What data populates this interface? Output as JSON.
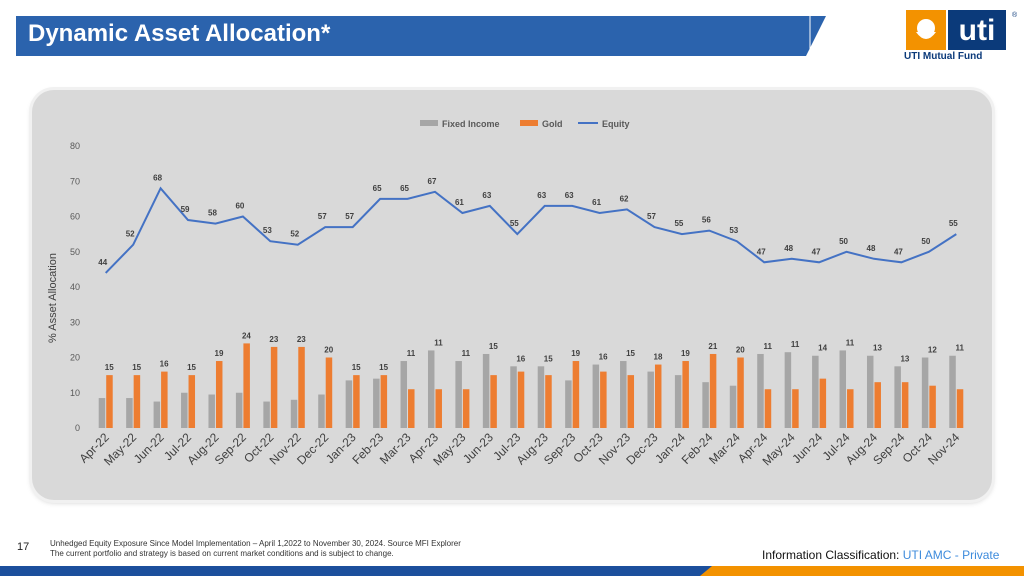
{
  "slide": {
    "title": "Dynamic Asset Allocation*",
    "page_number": "17",
    "footnote_line1": "Unhedged Equity Exposure Since Model Implementation – April 1,2022 to November 30, 2024. Source MFI Explorer",
    "footnote_line2": "The current portfolio and strategy is based on current market conditions and is subject to change.",
    "classification_label": "Information Classification:",
    "classification_value": "UTI AMC - Private",
    "logo_text": "uti",
    "logo_caption": "UTI Mutual Fund",
    "logo_mark": "®"
  },
  "colors": {
    "title_bar": "#2b63ad",
    "fixed_income": "#a6a6a6",
    "gold": "#ed7d31",
    "equity": "#4472c4",
    "logo_orange": "#f39200",
    "logo_blue": "#0b3a7a",
    "bottom_bar": "#1c4f9c"
  },
  "chart_data": {
    "type": "bar",
    "ylabel": "% Asset Allocation",
    "ylim": [
      0,
      80
    ],
    "yticks": [
      0,
      10,
      20,
      30,
      40,
      50,
      60,
      70,
      80
    ],
    "legend_position": "top-center",
    "grid": false,
    "categories": [
      "Apr-22",
      "May-22",
      "Jun-22",
      "Jul-22",
      "Aug-22",
      "Sep-22",
      "Oct-22",
      "Nov-22",
      "Dec-22",
      "Jan-23",
      "Feb-23",
      "Mar-23",
      "Apr-23",
      "May-23",
      "Jun-23",
      "Jul-23",
      "Aug-23",
      "Sep-23",
      "Oct-23",
      "Nov-23",
      "Dec-23",
      "Jan-24",
      "Feb-24",
      "Mar-24",
      "Apr-24",
      "May-24",
      "Jun-24",
      "Jul-24",
      "Aug-24",
      "Sep-24",
      "Oct-24",
      "Nov-24"
    ],
    "series": [
      {
        "name": "Fixed Income",
        "kind": "bar",
        "labeled": false,
        "values": [
          8.5,
          8.5,
          7.5,
          10,
          9.5,
          10,
          7.5,
          8,
          9.5,
          13.5,
          14,
          19,
          22,
          19,
          21,
          17.5,
          17.5,
          13.5,
          18,
          19,
          16,
          15,
          13,
          12,
          21,
          21.5,
          20.5,
          22,
          20.5,
          17.5,
          20,
          20.5
        ]
      },
      {
        "name": "Gold",
        "kind": "bar",
        "labeled": true,
        "values": [
          15,
          15,
          16,
          15,
          19,
          24,
          23,
          23,
          20,
          15,
          15,
          11,
          11,
          11,
          15,
          16,
          15,
          19,
          16,
          15,
          18,
          19,
          21,
          20,
          11,
          11,
          14,
          11,
          13,
          13,
          12,
          11
        ]
      },
      {
        "name": "Equity",
        "kind": "line",
        "labeled": true,
        "values": [
          44,
          52,
          68,
          59,
          58,
          60,
          53,
          52,
          57,
          57,
          65,
          65,
          67,
          61,
          63,
          55,
          63,
          63,
          61,
          62,
          57,
          55,
          56,
          53,
          47,
          48,
          47,
          50,
          48,
          47,
          50,
          55
        ]
      }
    ]
  }
}
